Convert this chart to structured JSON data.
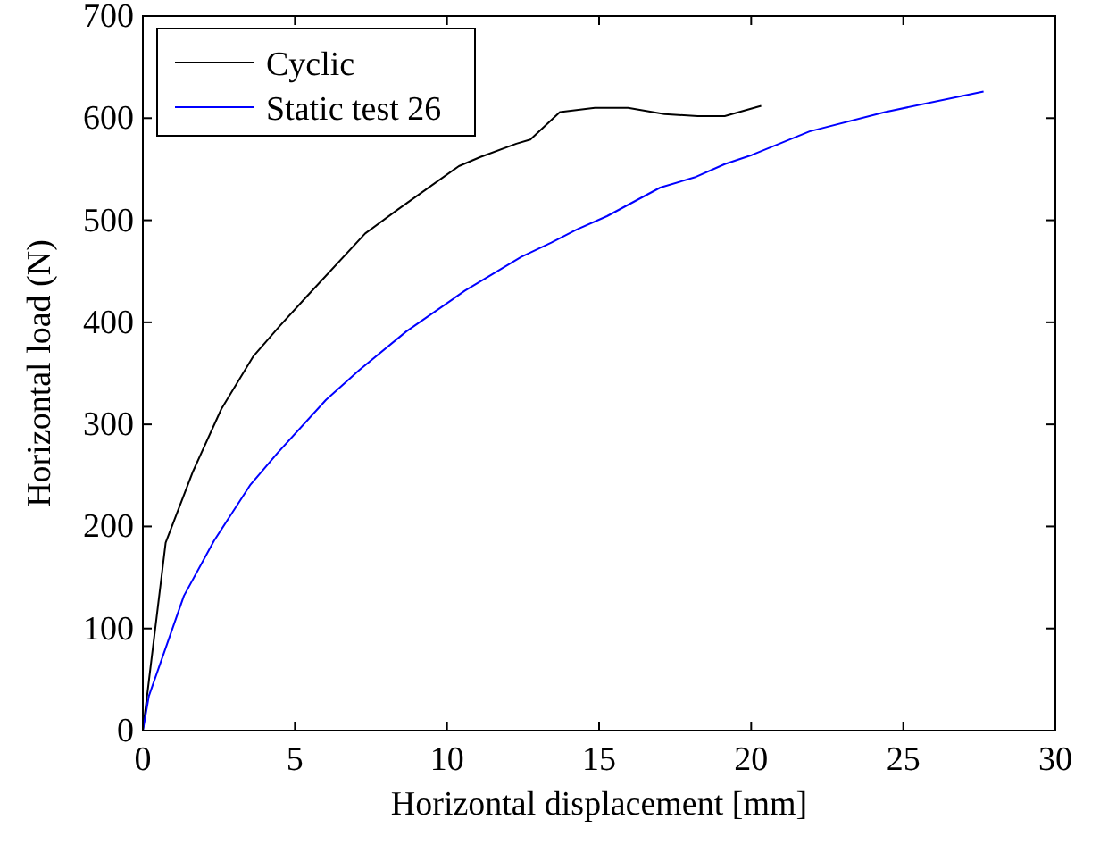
{
  "chart_data": {
    "type": "line",
    "xlabel": "Horizontal displacement [mm]",
    "ylabel": "Horizontal load (N)",
    "xlim": [
      0,
      30
    ],
    "xticks": [
      0,
      5,
      10,
      15,
      20,
      25,
      30
    ],
    "ylim": [
      0,
      700
    ],
    "yticks": [
      0,
      100,
      200,
      300,
      400,
      500,
      600,
      700
    ],
    "grid": false,
    "legend": "top left",
    "marker": "none",
    "line_style": "solid",
    "series": [
      {
        "name": "Cyclic",
        "color": "#000000",
        "x": [
          0,
          0.75,
          1.65,
          2.58,
          3.64,
          4.49,
          5.38,
          7.31,
          8.36,
          10.39,
          11.1,
          12.28,
          12.74,
          13.71,
          14.86,
          15.95,
          17.15,
          18.24,
          19.13,
          20.33
        ],
        "values": [
          0,
          184,
          254,
          315,
          367,
          396,
          425,
          487,
          510,
          553,
          562,
          575,
          579,
          606,
          610,
          610,
          604,
          602,
          602,
          612
        ]
      },
      {
        "name": "Static test 26",
        "color": "#0000ff",
        "x": [
          0,
          0.2,
          1.35,
          2.34,
          3.54,
          4.43,
          6.02,
          7.11,
          8.66,
          10.59,
          12.44,
          13.43,
          14.27,
          15.26,
          17.01,
          18.14,
          19.13,
          20.03,
          21.92,
          24.4,
          27.64
        ],
        "values": [
          0,
          34,
          132,
          186,
          241,
          272,
          324,
          353,
          391,
          431,
          464,
          478,
          491,
          504,
          532,
          542,
          555,
          564,
          587,
          606,
          626
        ]
      }
    ]
  }
}
